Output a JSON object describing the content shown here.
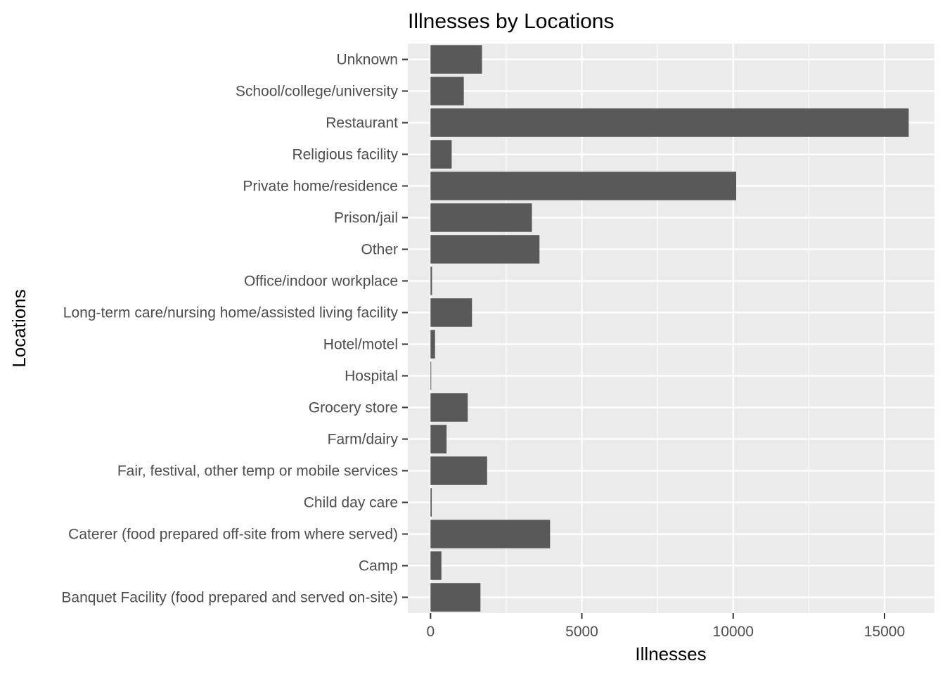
{
  "chart_data": {
    "type": "bar",
    "orientation": "horizontal",
    "title": "Illnesses by Locations",
    "xlabel": "Illnesses",
    "ylabel": "Locations",
    "xlim": [
      -750,
      16650
    ],
    "x_ticks": [
      0,
      5000,
      10000,
      15000
    ],
    "x_tick_labels": [
      "0",
      "5000",
      "10000",
      "15000"
    ],
    "grid": true,
    "legend": "none",
    "colors": {
      "bar": "#595959",
      "panel": "#ebebeb",
      "grid": "#ffffff",
      "tick": "#333333",
      "tick_text": "#4d4d4d"
    },
    "categories": [
      "Unknown",
      "School/college/university",
      "Restaurant",
      "Religious facility",
      "Private home/residence",
      "Prison/jail",
      "Other",
      "Office/indoor workplace",
      "Long-term care/nursing home/assisted living facility",
      "Hotel/motel",
      "Hospital",
      "Grocery store",
      "Farm/dairy",
      "Fair, festival, other temp or mobile services",
      "Child day care",
      "Caterer (food prepared off-site from where served)",
      "Camp",
      "Banquet Facility (food prepared and served on-site)"
    ],
    "values": [
      1700,
      1100,
      15800,
      700,
      10100,
      3350,
      3600,
      50,
      1370,
      150,
      15,
      1230,
      530,
      1870,
      40,
      3950,
      360,
      1650
    ]
  }
}
